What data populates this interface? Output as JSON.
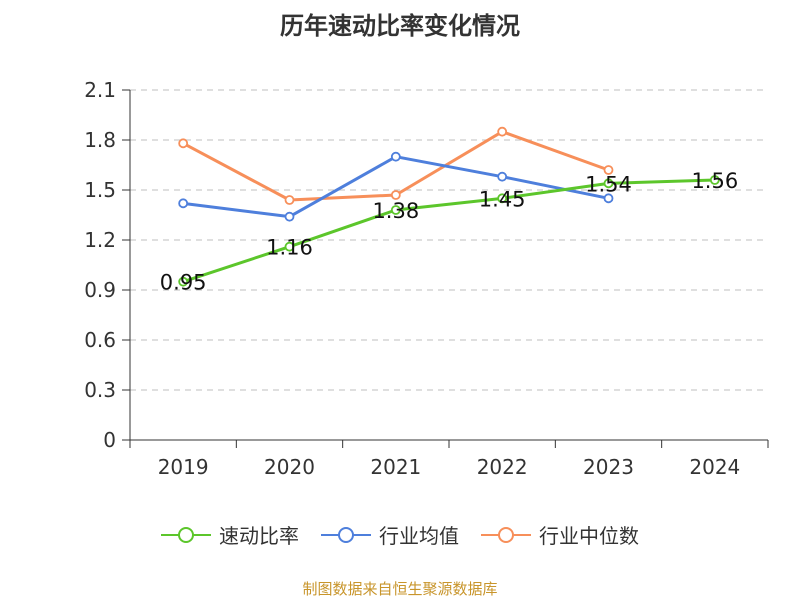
{
  "chart_data": {
    "type": "line",
    "title": "历年速动比率变化情况",
    "categories": [
      "2019",
      "2020",
      "2021",
      "2022",
      "2023",
      "2024"
    ],
    "ylim": [
      0,
      2.1
    ],
    "yticks": [
      "0",
      "0.3",
      "0.6",
      "0.9",
      "1.2",
      "1.5",
      "1.8",
      "2.1"
    ],
    "grid": true,
    "legend_position": "bottom",
    "series": [
      {
        "name": "速动比率",
        "color": "#5cc62b",
        "values": [
          0.95,
          1.16,
          1.38,
          1.45,
          1.54,
          1.56
        ],
        "labels": [
          "0.95",
          "1.16",
          "1.38",
          "1.45",
          "1.54",
          "1.56"
        ]
      },
      {
        "name": "行业均值",
        "color": "#4e7fdc",
        "values": [
          1.42,
          1.34,
          1.7,
          1.58,
          1.45,
          null
        ]
      },
      {
        "name": "行业中位数",
        "color": "#f78f5a",
        "values": [
          1.78,
          1.44,
          1.47,
          1.85,
          1.62,
          null
        ]
      }
    ]
  },
  "source": "制图数据来自恒生聚源数据库"
}
